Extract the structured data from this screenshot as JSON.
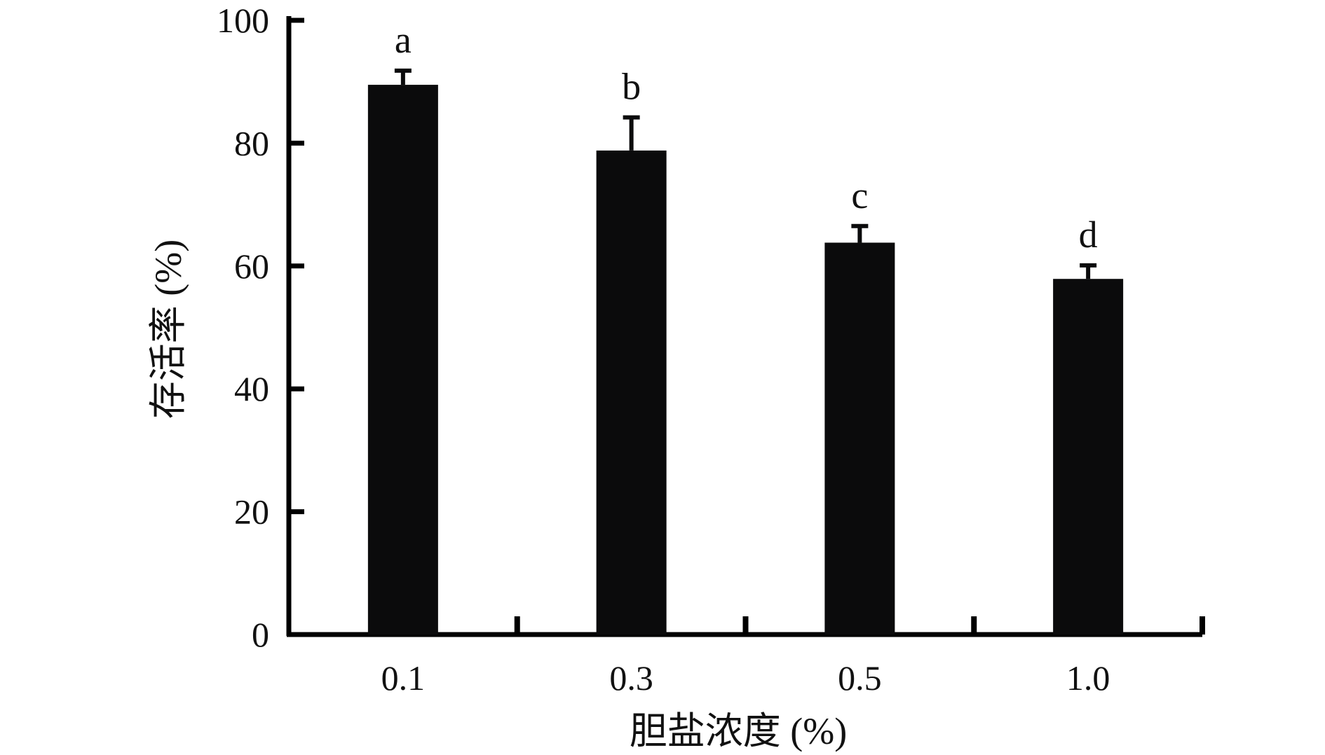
{
  "chart_data": {
    "type": "bar",
    "categories": [
      "0.1",
      "0.3",
      "0.5",
      "1.0"
    ],
    "values": [
      89.5,
      78.8,
      63.8,
      57.9
    ],
    "errors": [
      2.3,
      5.4,
      2.7,
      2.2
    ],
    "significance": [
      "a",
      "b",
      "c",
      "d"
    ],
    "xlabel": "胆盐浓度 (%)",
    "ylabel": "存活率 (%)",
    "ylim": [
      0,
      100
    ],
    "yticks": [
      "0",
      "20",
      "40",
      "60",
      "80",
      "100"
    ],
    "grid": false,
    "legend": "none",
    "colors": {
      "bar": "#0b0b0c",
      "axis": "#000000",
      "text": "#111111"
    }
  }
}
